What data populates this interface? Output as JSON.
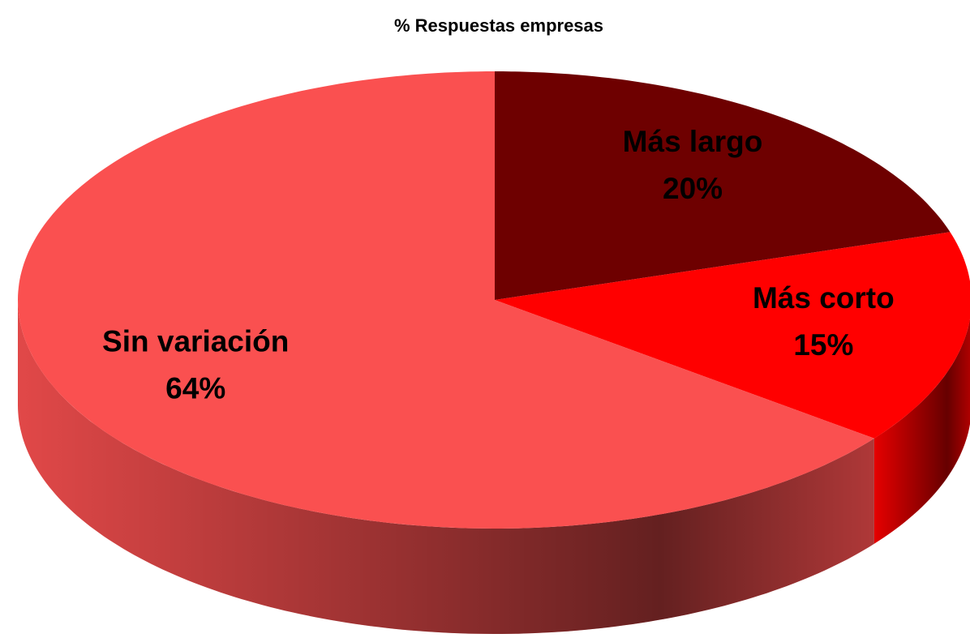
{
  "chart_data": {
    "type": "pie",
    "title": "% Respuestas empresas",
    "categories": [
      "Más largo",
      "Más corto",
      "Sin variación"
    ],
    "values": [
      20,
      15,
      64
    ],
    "value_labels": [
      "20%",
      "15%",
      "64%"
    ],
    "colors": [
      "#6e0000",
      "#ff0000",
      "#fa5050"
    ]
  }
}
